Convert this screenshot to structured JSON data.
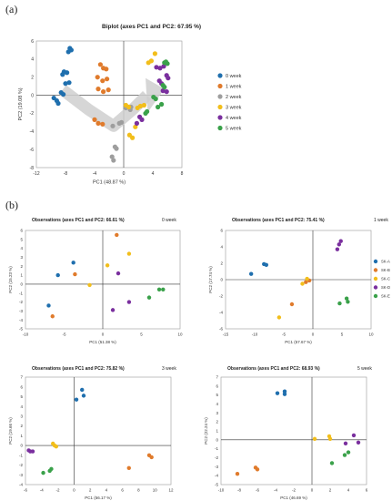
{
  "panel_labels": [
    "(a)",
    "(b)"
  ],
  "colors": {
    "0 week": "#1f6fae",
    "1 week": "#e07b2c",
    "2 week": "#9e9e9e",
    "3 week": "#f2be1b",
    "4 week": "#7a2f9e",
    "5 week": "#3aa14a",
    "SK-A": "#1f6fae",
    "SK-B": "#e07b2c",
    "SK-C": "#f2be1b",
    "SK-D": "#7a2f9e",
    "SK-E": "#3aa14a"
  },
  "chart_data": [
    {
      "type": "scatter",
      "title": "Biplot (axes PC1 and PC2: 67.95 %)",
      "xlabel": "PC1 (48.87 %)",
      "ylabel": "PC2 (19.08 %)",
      "xlim": [
        -12,
        8
      ],
      "ylim": [
        -8,
        6
      ],
      "xticks": [
        -12,
        -8,
        -4,
        0,
        4,
        8
      ],
      "yticks": [
        -8,
        -6,
        -4,
        -2,
        0,
        2,
        4,
        6
      ],
      "legend": "right",
      "annotation": "trajectory arrow from 0 week to 5 week",
      "series": [
        {
          "name": "0 week",
          "points": [
            [
              -7.4,
              5.2
            ],
            [
              -7.2,
              5.0
            ],
            [
              -7.6,
              4.8
            ],
            [
              -8.2,
              2.6
            ],
            [
              -7.8,
              2.5
            ],
            [
              -8.4,
              2.3
            ],
            [
              -8.0,
              1.3
            ],
            [
              -7.5,
              1.4
            ],
            [
              -8.6,
              0.3
            ],
            [
              -8.3,
              0.1
            ],
            [
              -9.6,
              -0.3
            ],
            [
              -9.2,
              -0.6
            ],
            [
              -9.0,
              -0.9
            ]
          ]
        },
        {
          "name": "1 week",
          "points": [
            [
              -3.2,
              3.4
            ],
            [
              -2.8,
              3.0
            ],
            [
              -2.4,
              2.9
            ],
            [
              -3.6,
              2.0
            ],
            [
              -2.9,
              1.6
            ],
            [
              -2.3,
              1.8
            ],
            [
              -3.5,
              0.7
            ],
            [
              -2.8,
              0.4
            ],
            [
              -2.1,
              0.6
            ],
            [
              -4.0,
              -2.7
            ],
            [
              -3.5,
              -3.1
            ],
            [
              -2.9,
              -3.2
            ]
          ]
        },
        {
          "name": "2 week",
          "points": [
            [
              -0.6,
              -3.1
            ],
            [
              -0.3,
              -3.0
            ],
            [
              -1.5,
              -3.4
            ],
            [
              -1.2,
              -5.7
            ],
            [
              -1.0,
              -5.9
            ],
            [
              -1.6,
              -6.8
            ],
            [
              -1.4,
              -7.2
            ],
            [
              0.3,
              -1.4
            ],
            [
              0.9,
              -1.6
            ],
            [
              1.0,
              -1.3
            ]
          ]
        },
        {
          "name": "3 week",
          "points": [
            [
              4.3,
              4.6
            ],
            [
              3.4,
              3.6
            ],
            [
              3.8,
              3.8
            ],
            [
              0.3,
              -1.1
            ],
            [
              0.7,
              -1.3
            ],
            [
              1.9,
              -1.4
            ],
            [
              2.3,
              -1.2
            ],
            [
              2.8,
              -1.1
            ],
            [
              0.8,
              -4.4
            ],
            [
              1.2,
              -4.7
            ],
            [
              1.6,
              -3.5
            ]
          ]
        },
        {
          "name": "4 week",
          "points": [
            [
              4.5,
              3.1
            ],
            [
              5.0,
              3.0
            ],
            [
              5.5,
              3.2
            ],
            [
              5.9,
              2.2
            ],
            [
              6.1,
              1.9
            ],
            [
              4.9,
              1.6
            ],
            [
              5.2,
              1.3
            ],
            [
              5.4,
              0.5
            ],
            [
              5.9,
              0.4
            ],
            [
              2.2,
              -2.4
            ],
            [
              2.5,
              -2.7
            ],
            [
              1.8,
              -3.1
            ]
          ]
        },
        {
          "name": "5 week",
          "points": [
            [
              5.6,
              3.6
            ],
            [
              5.8,
              3.7
            ],
            [
              6.0,
              3.5
            ],
            [
              5.4,
              1.1
            ],
            [
              5.6,
              0.9
            ],
            [
              4.1,
              -0.2
            ],
            [
              4.4,
              -0.4
            ],
            [
              5.2,
              -1.0
            ],
            [
              4.7,
              -1.3
            ],
            [
              3.2,
              -1.8
            ],
            [
              3.0,
              -2.0
            ]
          ]
        }
      ]
    },
    {
      "type": "scatter",
      "title": "Observations (axes PC1 and PC2: 66.61 %)",
      "subtitle": "0 week",
      "xlabel": "PC1 (51.38 %)",
      "ylabel": "PC2 (15.23 %)",
      "xlim": [
        -10,
        10
      ],
      "ylim": [
        -5,
        6
      ],
      "xticks": [
        -10,
        -5,
        0,
        5,
        10
      ],
      "yticks": [
        -5,
        -4,
        -3,
        -2,
        -1,
        0,
        1,
        2,
        3,
        4,
        5,
        6
      ],
      "series": [
        {
          "name": "SK-A",
          "points": [
            [
              -5.8,
              1.0
            ],
            [
              -3.8,
              2.4
            ],
            [
              -7.0,
              -2.4
            ]
          ]
        },
        {
          "name": "SK-B",
          "points": [
            [
              1.8,
              5.5
            ],
            [
              -3.6,
              1.1
            ],
            [
              -6.5,
              -3.6
            ]
          ]
        },
        {
          "name": "SK-C",
          "points": [
            [
              3.4,
              3.4
            ],
            [
              0.6,
              2.1
            ],
            [
              -1.7,
              -0.1
            ]
          ]
        },
        {
          "name": "SK-D",
          "points": [
            [
              2.0,
              1.2
            ],
            [
              3.4,
              -2.0
            ],
            [
              1.3,
              -2.9
            ]
          ]
        },
        {
          "name": "SK-E",
          "points": [
            [
              7.3,
              -0.6
            ],
            [
              7.8,
              -0.6
            ],
            [
              6.0,
              -1.5
            ]
          ]
        }
      ]
    },
    {
      "type": "scatter",
      "title": "Observations (axes PC1 and PC2: 75.41 %)",
      "subtitle": "1 week",
      "xlabel": "PC1 (57.67 %)",
      "ylabel": "PC2 (17.74 %)",
      "xlim": [
        -15,
        10
      ],
      "ylim": [
        -6,
        6
      ],
      "xticks": [
        -15,
        -10,
        -5,
        0,
        5,
        10
      ],
      "yticks": [
        -6,
        -4,
        -2,
        0,
        2,
        4,
        6
      ],
      "legend": "right",
      "series": [
        {
          "name": "SK-A",
          "points": [
            [
              -10.6,
              0.7
            ],
            [
              -8.4,
              1.9
            ],
            [
              -8.0,
              1.8
            ]
          ]
        },
        {
          "name": "SK-B",
          "points": [
            [
              -1.2,
              -0.3
            ],
            [
              -0.6,
              -0.1
            ],
            [
              -3.6,
              -3.0
            ]
          ]
        },
        {
          "name": "SK-C",
          "points": [
            [
              -1.0,
              0.1
            ],
            [
              -1.8,
              -0.5
            ],
            [
              -5.8,
              -4.6
            ]
          ]
        },
        {
          "name": "SK-D",
          "points": [
            [
              4.8,
              4.7
            ],
            [
              4.2,
              3.7
            ],
            [
              4.5,
              4.3
            ]
          ]
        },
        {
          "name": "SK-E",
          "points": [
            [
              5.8,
              -2.3
            ],
            [
              6.0,
              -2.7
            ],
            [
              4.6,
              -2.9
            ]
          ]
        }
      ]
    },
    {
      "type": "scatter",
      "title": "Observations (axes PC1 and PC2: 75.82 %)",
      "subtitle": "3 week",
      "xlabel": "PC1 (56.17 %)",
      "ylabel": "PC2 (19.66 %)",
      "xlim": [
        -6,
        12
      ],
      "ylim": [
        -4,
        7
      ],
      "xticks": [
        -6,
        -4,
        -2,
        0,
        2,
        4,
        6,
        8,
        10,
        12
      ],
      "yticks": [
        -4,
        -3,
        -2,
        -1,
        0,
        1,
        2,
        3,
        4,
        5,
        6,
        7
      ],
      "series": [
        {
          "name": "SK-A",
          "points": [
            [
              1.0,
              5.7
            ],
            [
              1.2,
              5.1
            ],
            [
              0.3,
              4.7
            ]
          ]
        },
        {
          "name": "SK-B",
          "points": [
            [
              9.3,
              -1.0
            ],
            [
              9.6,
              -1.2
            ],
            [
              6.8,
              -2.3
            ]
          ]
        },
        {
          "name": "SK-C",
          "points": [
            [
              -2.6,
              0.2
            ],
            [
              -2.4,
              0.0
            ],
            [
              -2.2,
              -0.1
            ]
          ]
        },
        {
          "name": "SK-D",
          "points": [
            [
              -5.4,
              -0.6
            ],
            [
              -5.1,
              -0.6
            ],
            [
              -5.6,
              -0.5
            ]
          ]
        },
        {
          "name": "SK-E",
          "points": [
            [
              -2.8,
              -2.4
            ],
            [
              -3.0,
              -2.6
            ],
            [
              -3.8,
              -2.8
            ]
          ]
        }
      ]
    },
    {
      "type": "scatter",
      "title": "Observations (axes PC1 and PC2: 68.93 %)",
      "subtitle": "5 week",
      "xlabel": "PC1 (46.69 %)",
      "ylabel": "PC2 (22.24 %)",
      "xlim": [
        -10,
        6
      ],
      "ylim": [
        -5,
        7
      ],
      "xticks": [
        -10,
        -8,
        -6,
        -4,
        -2,
        0,
        2,
        4,
        6
      ],
      "yticks": [
        -5,
        -4,
        -3,
        -2,
        -1,
        0,
        1,
        2,
        3,
        4,
        5,
        6,
        7
      ],
      "series": [
        {
          "name": "SK-A",
          "points": [
            [
              -3.8,
              5.2
            ],
            [
              -3.0,
              5.4
            ],
            [
              -3.0,
              5.1
            ]
          ]
        },
        {
          "name": "SK-B",
          "points": [
            [
              -8.2,
              -3.8
            ],
            [
              -6.2,
              -3.1
            ],
            [
              -6.0,
              -3.3
            ]
          ]
        },
        {
          "name": "SK-C",
          "points": [
            [
              0.3,
              0.1
            ],
            [
              1.9,
              0.4
            ],
            [
              2.0,
              0.1
            ]
          ]
        },
        {
          "name": "SK-D",
          "points": [
            [
              4.6,
              0.5
            ],
            [
              5.1,
              -0.3
            ],
            [
              3.7,
              -0.4
            ]
          ]
        },
        {
          "name": "SK-E",
          "points": [
            [
              4.0,
              -1.4
            ],
            [
              3.6,
              -1.7
            ],
            [
              2.2,
              -2.6
            ]
          ]
        }
      ]
    }
  ]
}
